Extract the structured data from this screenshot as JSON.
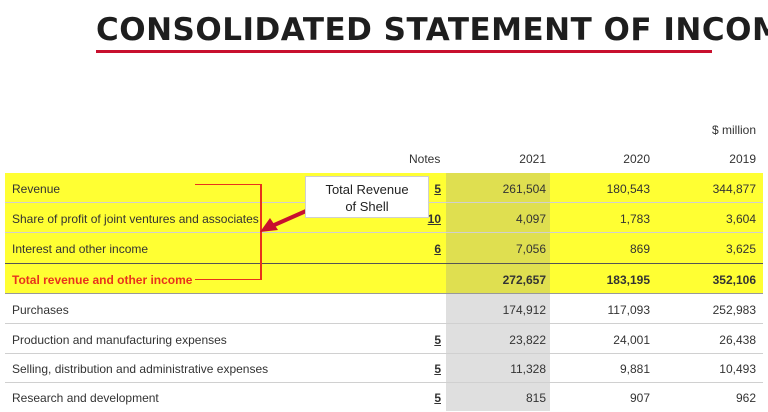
{
  "title": "CONSOLIDATED STATEMENT OF INCOME",
  "unit": "$ million",
  "headers": {
    "notes": "Notes",
    "y2021": "2021",
    "y2020": "2020",
    "y2019": "2019"
  },
  "callout": {
    "line1": "Total Revenue",
    "line2": "of Shell"
  },
  "rows": [
    {
      "label": "Revenue",
      "note": "5",
      "v2021": "261,504",
      "v2020": "180,543",
      "v2019": "344,877"
    },
    {
      "label": "Share of profit of joint ventures and associates",
      "note": "10",
      "v2021": "4,097",
      "v2020": "1,783",
      "v2019": "3,604"
    },
    {
      "label": "Interest and other income",
      "note": "6",
      "v2021": "7,056",
      "v2020": "869",
      "v2019": "3,625"
    },
    {
      "label": "Total revenue and other income",
      "note": "",
      "v2021": "272,657",
      "v2020": "183,195",
      "v2019": "352,106"
    },
    {
      "label": "Purchases",
      "note": "",
      "v2021": "174,912",
      "v2020": "117,093",
      "v2019": "252,983"
    },
    {
      "label": "Production and manufacturing expenses",
      "note": "5",
      "v2021": "23,822",
      "v2020": "24,001",
      "v2019": "26,438"
    },
    {
      "label": "Selling, distribution and administrative expenses",
      "note": "5",
      "v2021": "11,328",
      "v2020": "9,881",
      "v2019": "10,493"
    },
    {
      "label": "Research and development",
      "note": "5",
      "v2021": "815",
      "v2020": "907",
      "v2019": "962"
    }
  ],
  "colors": {
    "highlight": "#ffff33",
    "accent": "#e8331c",
    "title_rule": "#c8102e"
  }
}
